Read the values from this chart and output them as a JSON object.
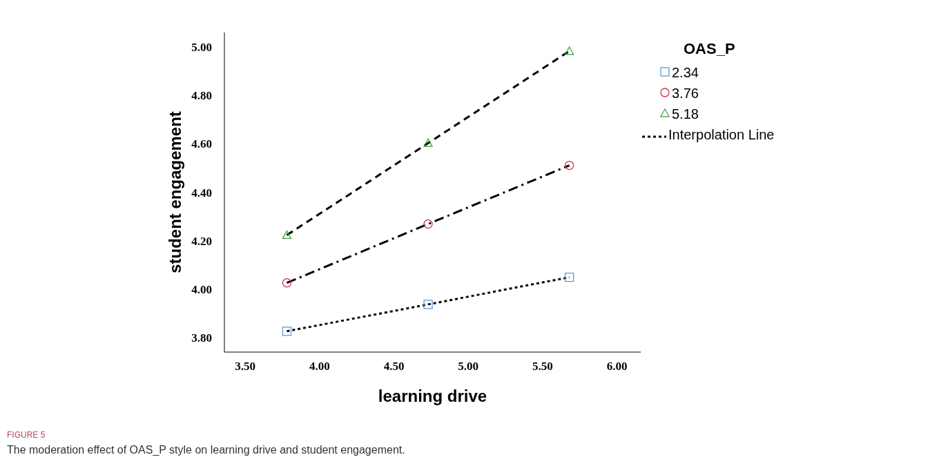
{
  "chart_data": {
    "type": "line",
    "xlabel": "learning drive",
    "ylabel": "student engagement",
    "legend_title": "OAS_P",
    "legend": "top right",
    "xlim": [
      3.36,
      6.16
    ],
    "ylim": [
      3.74,
      5.06
    ],
    "xticks": [
      {
        "value": 3.5,
        "label": "3.50"
      },
      {
        "value": 4,
        "label": "4.00"
      },
      {
        "value": 4.5,
        "label": "4.50"
      },
      {
        "value": 5,
        "label": "5.00"
      },
      {
        "value": 5.5,
        "label": "5.50"
      },
      {
        "value": 6,
        "label": "6.00"
      }
    ],
    "yticks": [
      {
        "value": 3.8,
        "label": "3.80"
      },
      {
        "value": 4,
        "label": "4.00"
      },
      {
        "value": 4.2,
        "label": "4.20"
      },
      {
        "value": 4.4,
        "label": "4.40"
      },
      {
        "value": 4.6,
        "label": "4.60"
      },
      {
        "value": 4.8,
        "label": "4.80"
      },
      {
        "value": 5,
        "label": "5.00"
      }
    ],
    "x": [
      3.78,
      4.73,
      5.68
    ],
    "series": [
      {
        "name": "2.34",
        "type": "scatter",
        "marker": "square",
        "color": "#5b9bd5",
        "values": [
          3.826,
          3.937,
          4.049
        ]
      },
      {
        "name": "3.76",
        "type": "scatter",
        "marker": "circle",
        "color": "#d6304a",
        "values": [
          4.026,
          4.269,
          4.511
        ]
      },
      {
        "name": "5.18",
        "type": "scatter",
        "marker": "triangle",
        "color": "#3a9a3a",
        "values": [
          4.223,
          4.603,
          4.983
        ]
      },
      {
        "name": "Interpolation Line",
        "line_style": "dotted",
        "color": "#000000",
        "values": [
          3.826,
          3.937,
          4.049
        ]
      },
      {
        "line_style": "dashdot",
        "color": "#000000",
        "values": [
          4.026,
          4.269,
          4.511
        ]
      },
      {
        "line_style": "dashed",
        "color": "#000000",
        "values": [
          4.223,
          4.603,
          4.983
        ]
      }
    ],
    "annotations": [
      "FIGURE 5",
      "The moderation effect of OAS_P style on learning drive and student engagement."
    ]
  }
}
